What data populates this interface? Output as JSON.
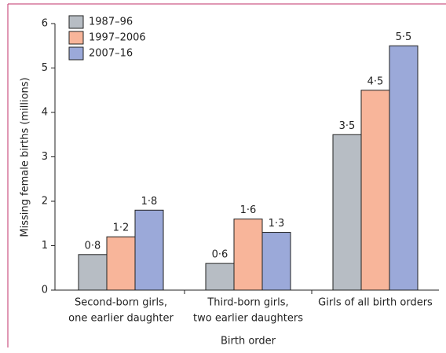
{
  "chart_data": {
    "type": "bar",
    "y_label": "Missing female births (millions)",
    "x_label": "Birth order",
    "categories": [
      [
        "Second-born girls,",
        "one earlier daughter"
      ],
      [
        "Third-born girls,",
        "two earlier daughters"
      ],
      [
        "Girls of all birth orders"
      ]
    ],
    "series": [
      {
        "name": "1987–96",
        "color": "#b7bdc4",
        "values": [
          0.8,
          0.6,
          3.5
        ],
        "value_labels": [
          "0·8",
          "0·6",
          "3·5"
        ]
      },
      {
        "name": "1997–2006",
        "color": "#f8b59a",
        "values": [
          1.2,
          1.6,
          4.5
        ],
        "value_labels": [
          "1·2",
          "1·6",
          "4·5"
        ]
      },
      {
        "name": "2007–16",
        "color": "#9ba9d9",
        "values": [
          1.8,
          1.3,
          5.5
        ],
        "value_labels": [
          "1·8",
          "1·3",
          "5·5"
        ]
      }
    ],
    "ylim": [
      0,
      6
    ],
    "yticks": [
      0,
      1,
      2,
      3,
      4,
      5,
      6
    ],
    "legend": "upper-left"
  }
}
